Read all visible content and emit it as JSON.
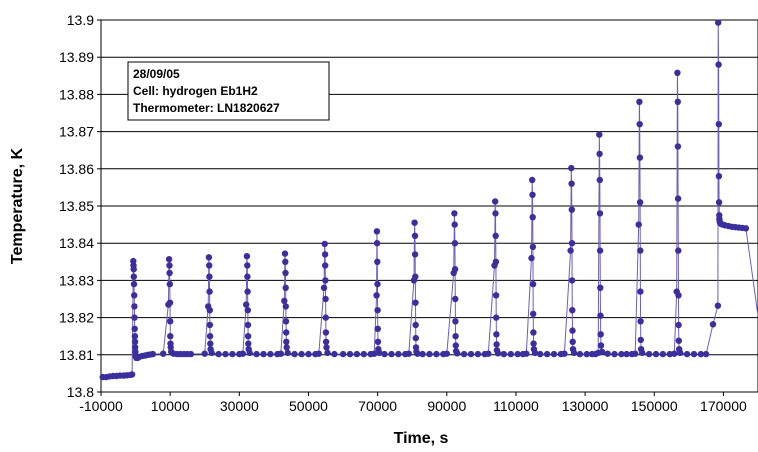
{
  "chart_data": {
    "type": "scatter",
    "title": "",
    "xlabel": "Time, s",
    "ylabel": "Temperature, K",
    "xlim": [
      -10000,
      180000
    ],
    "ylim": [
      13.8,
      13.9
    ],
    "x_ticks": [
      -10000,
      10000,
      30000,
      50000,
      70000,
      90000,
      110000,
      130000,
      150000,
      170000
    ],
    "x_tick_labels": [
      "-10000",
      "10000",
      "30000",
      "50000",
      "70000",
      "90000",
      "110000",
      "130000",
      "150000",
      "170000"
    ],
    "y_ticks": [
      13.8,
      13.81,
      13.82,
      13.83,
      13.84,
      13.85,
      13.86,
      13.87,
      13.88,
      13.89,
      13.9
    ],
    "y_tick_labels": [
      "13.8",
      "13.81",
      "13.82",
      "13.83",
      "13.84",
      "13.85",
      "13.86",
      "13.87",
      "13.88",
      "13.89",
      "13.9"
    ],
    "grid": "horizontal",
    "annotation_lines": [
      "28/09/05",
      "Cell: hydrogen Eb1H2",
      "Thermometer: LN1820627"
    ],
    "marker_color": "#3b2f9e",
    "line_color": "#6a5fbf",
    "series": [
      {
        "x": [
          -9500,
          -8500,
          -7500,
          -6500,
          -5500,
          -4500,
          -3500,
          -2500,
          -1500,
          -1000,
          -650,
          -600,
          -550,
          -500,
          -450,
          -400,
          -350,
          -300,
          -250,
          -200,
          -150,
          -100,
          -50,
          0,
          200,
          600,
          1200,
          2000,
          2800,
          3600,
          4400,
          5000,
          8000,
          9500,
          9700,
          9800,
          9850,
          9900,
          9950,
          10000,
          10050,
          10100,
          10150,
          10300,
          11000,
          12000,
          13000,
          14000,
          15000,
          16000,
          20000,
          21000,
          21200,
          21300,
          21350,
          21400,
          21450,
          21500,
          21550,
          21600,
          21700,
          22000,
          24000,
          26000,
          28000,
          30000,
          31000,
          32000,
          32200,
          32300,
          32350,
          32400,
          32450,
          32500,
          32550,
          32600,
          32700,
          33000,
          35000,
          37000,
          39000,
          41000,
          42000,
          43000,
          43200,
          43300,
          43350,
          43400,
          43450,
          43500,
          43550,
          43600,
          43700,
          44000,
          46000,
          48000,
          50000,
          52000,
          53000,
          54500,
          54700,
          54800,
          54850,
          54900,
          54950,
          55000,
          55050,
          55100,
          55200,
          55500,
          57500,
          60000,
          62000,
          64000,
          66000,
          68000,
          69000,
          69700,
          69800,
          69850,
          69900,
          69950,
          70000,
          70050,
          70100,
          70200,
          70500,
          72000,
          74000,
          76000,
          78000,
          79000,
          80500,
          80700,
          80800,
          80850,
          80900,
          80950,
          81000,
          81050,
          81100,
          81200,
          81500,
          83000,
          85000,
          87000,
          89000,
          90000,
          92000,
          92200,
          92300,
          92350,
          92400,
          92450,
          92500,
          92550,
          92600,
          92700,
          93000,
          95000,
          97000,
          99000,
          101000,
          102000,
          103800,
          104000,
          104100,
          104150,
          104200,
          104250,
          104300,
          104350,
          104400,
          104500,
          104800,
          106500,
          108500,
          110500,
          112000,
          113000,
          114500,
          114700,
          114800,
          114850,
          114900,
          114950,
          115000,
          115050,
          115100,
          115200,
          115500,
          117000,
          119000,
          121000,
          123000,
          124000,
          125800,
          126000,
          126100,
          126150,
          126200,
          126250,
          126300,
          126350,
          126400,
          126500,
          126800,
          128500,
          130500,
          132000,
          133000,
          133800,
          134100,
          134200,
          134250,
          134300,
          134350,
          134400,
          134450,
          134500,
          134600,
          134900,
          136500,
          138500,
          140500,
          142000,
          143500,
          144500,
          145500,
          145700,
          145800,
          145850,
          145900,
          145950,
          146000,
          146050,
          146100,
          146200,
          146500,
          148500,
          150500,
          152500,
          154500,
          155800,
          156500,
          156700,
          156800,
          156850,
          156900,
          156950,
          157000,
          157050,
          157100,
          157200,
          157500,
          159500,
          161500,
          163500,
          165000,
          167000,
          168400,
          168500,
          168600,
          168650,
          168700,
          168750,
          168800,
          168850,
          168900,
          169000,
          169300,
          169800,
          170500,
          171500,
          172500,
          173500,
          174500,
          175500,
          176500
        ],
        "y": [
          13.804,
          13.804,
          13.8042,
          13.8043,
          13.8043,
          13.8044,
          13.8044,
          13.8045,
          13.8046,
          13.8047,
          13.8352,
          13.834,
          13.833,
          13.831,
          13.829,
          13.826,
          13.823,
          13.82,
          13.817,
          13.815,
          13.8135,
          13.812,
          13.8108,
          13.8096,
          13.8092,
          13.8092,
          13.8095,
          13.8097,
          13.8098,
          13.81,
          13.8101,
          13.8102,
          13.8103,
          13.8235,
          13.8357,
          13.834,
          13.832,
          13.829,
          13.824,
          13.819,
          13.815,
          13.813,
          13.812,
          13.8108,
          13.8103,
          13.8102,
          13.8102,
          13.8102,
          13.8102,
          13.8102,
          13.8103,
          13.823,
          13.8362,
          13.834,
          13.831,
          13.827,
          13.822,
          13.818,
          13.815,
          13.813,
          13.8115,
          13.8105,
          13.8102,
          13.8102,
          13.8102,
          13.8102,
          13.8103,
          13.8235,
          13.8365,
          13.834,
          13.831,
          13.827,
          13.822,
          13.818,
          13.815,
          13.813,
          13.8115,
          13.8105,
          13.8102,
          13.8102,
          13.8102,
          13.8102,
          13.8103,
          13.8245,
          13.8372,
          13.835,
          13.832,
          13.828,
          13.823,
          13.819,
          13.816,
          13.8135,
          13.812,
          13.8105,
          13.8102,
          13.8102,
          13.8102,
          13.8102,
          13.8103,
          13.828,
          13.8398,
          13.837,
          13.834,
          13.83,
          13.825,
          13.82,
          13.816,
          13.8135,
          13.812,
          13.8105,
          13.8102,
          13.8102,
          13.8102,
          13.8102,
          13.8102,
          13.8102,
          13.8103,
          13.826,
          13.8432,
          13.84,
          13.835,
          13.829,
          13.822,
          13.817,
          13.8135,
          13.8115,
          13.8105,
          13.8102,
          13.8102,
          13.8102,
          13.8102,
          13.8103,
          13.83,
          13.8455,
          13.842,
          13.837,
          13.831,
          13.824,
          13.818,
          13.8145,
          13.812,
          13.8108,
          13.8103,
          13.8102,
          13.8102,
          13.8102,
          13.8102,
          13.8103,
          13.832,
          13.848,
          13.845,
          13.84,
          13.833,
          13.825,
          13.819,
          13.815,
          13.8125,
          13.811,
          13.8104,
          13.8102,
          13.8102,
          13.8102,
          13.8102,
          13.8103,
          13.834,
          13.8512,
          13.848,
          13.842,
          13.835,
          13.826,
          13.82,
          13.8155,
          13.8128,
          13.8112,
          13.8104,
          13.8102,
          13.8102,
          13.8102,
          13.8102,
          13.8103,
          13.836,
          13.857,
          13.853,
          13.847,
          13.839,
          13.829,
          13.821,
          13.816,
          13.813,
          13.8115,
          13.8105,
          13.8102,
          13.8102,
          13.8102,
          13.8102,
          13.8103,
          13.838,
          13.8602,
          13.856,
          13.849,
          13.84,
          13.83,
          13.822,
          13.8165,
          13.8135,
          13.8115,
          13.8105,
          13.8102,
          13.8102,
          13.8102,
          13.8102,
          13.8105,
          13.8692,
          13.864,
          13.857,
          13.848,
          13.838,
          13.828,
          13.8205,
          13.8155,
          13.8125,
          13.8108,
          13.8103,
          13.8102,
          13.8102,
          13.8102,
          13.8102,
          13.8103,
          13.845,
          13.878,
          13.872,
          13.863,
          13.851,
          13.838,
          13.827,
          13.819,
          13.814,
          13.8115,
          13.8105,
          13.8102,
          13.8102,
          13.8102,
          13.8102,
          13.8103,
          13.827,
          13.8858,
          13.878,
          13.866,
          13.852,
          13.838,
          13.826,
          13.818,
          13.8138,
          13.8115,
          13.8105,
          13.8102,
          13.8102,
          13.8102,
          13.8102,
          13.8182,
          13.8232,
          13.8993,
          13.888,
          13.872,
          13.858,
          13.851,
          13.8475,
          13.8465,
          13.846,
          13.8455,
          13.8452,
          13.845,
          13.8448,
          13.8446,
          13.8444,
          13.8443,
          13.8442,
          13.8441,
          13.844
        ]
      }
    ]
  }
}
